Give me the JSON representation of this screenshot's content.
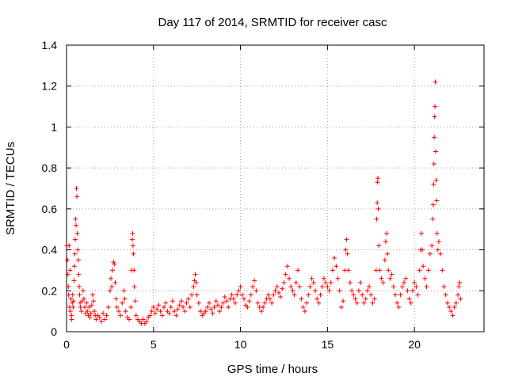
{
  "chart_data": {
    "type": "scatter",
    "title": "Day 117 of 2014, SRMTID for receiver casc",
    "xlabel": "GPS time / hours",
    "ylabel": "SRMTID / TECUs",
    "xlim": [
      0,
      24
    ],
    "ylim": [
      0,
      1.4
    ],
    "xticks": [
      0,
      5,
      10,
      15,
      20
    ],
    "xtick_labels": [
      "0",
      "5",
      "10",
      "15",
      "20"
    ],
    "yticks": [
      0,
      0.2,
      0.4,
      0.6,
      0.8,
      1.0,
      1.2,
      1.4
    ],
    "ytick_labels": [
      "0",
      "0.2",
      "0.4",
      "0.6",
      "0.8",
      "1",
      "1.2",
      "1.4"
    ],
    "grid": true,
    "marker": "plus",
    "color": "#ff0000",
    "series": [
      {
        "name": "SRMTID",
        "points": [
          [
            0.02,
            0.42
          ],
          [
            0.05,
            0.35
          ],
          [
            0.08,
            0.28
          ],
          [
            0.1,
            0.22
          ],
          [
            0.12,
            0.18
          ],
          [
            0.15,
            0.42
          ],
          [
            0.18,
            0.12
          ],
          [
            0.2,
            0.3
          ],
          [
            0.22,
            0.1
          ],
          [
            0.25,
            0.16
          ],
          [
            0.28,
            0.08
          ],
          [
            0.3,
            0.06
          ],
          [
            0.33,
            0.14
          ],
          [
            0.35,
            0.18
          ],
          [
            0.38,
            0.12
          ],
          [
            0.4,
            0.15
          ],
          [
            0.43,
            0.25
          ],
          [
            0.45,
            0.32
          ],
          [
            0.48,
            0.38
          ],
          [
            0.5,
            0.45
          ],
          [
            0.52,
            0.55
          ],
          [
            0.55,
            0.52
          ],
          [
            0.57,
            0.7
          ],
          [
            0.6,
            0.66
          ],
          [
            0.62,
            0.48
          ],
          [
            0.65,
            0.4
          ],
          [
            0.68,
            0.35
          ],
          [
            0.7,
            0.28
          ],
          [
            0.73,
            0.22
          ],
          [
            0.75,
            0.18
          ],
          [
            0.78,
            0.14
          ],
          [
            0.8,
            0.12
          ],
          [
            0.85,
            0.1
          ],
          [
            0.9,
            0.15
          ],
          [
            0.95,
            0.2
          ],
          [
            1.0,
            0.16
          ],
          [
            1.05,
            0.12
          ],
          [
            1.1,
            0.09
          ],
          [
            1.15,
            0.14
          ],
          [
            1.2,
            0.1
          ],
          [
            1.25,
            0.08
          ],
          [
            1.3,
            0.12
          ],
          [
            1.35,
            0.07
          ],
          [
            1.4,
            0.09
          ],
          [
            1.45,
            0.13
          ],
          [
            1.5,
            0.18
          ],
          [
            1.55,
            0.15
          ],
          [
            1.6,
            0.1
          ],
          [
            1.65,
            0.08
          ],
          [
            1.7,
            0.06
          ],
          [
            1.8,
            0.08
          ],
          [
            1.9,
            0.07
          ],
          [
            2.0,
            0.05
          ],
          [
            2.1,
            0.09
          ],
          [
            2.2,
            0.06
          ],
          [
            2.3,
            0.08
          ],
          [
            2.4,
            0.12
          ],
          [
            2.5,
            0.2
          ],
          [
            2.55,
            0.26
          ],
          [
            2.6,
            0.22
          ],
          [
            2.65,
            0.3
          ],
          [
            2.7,
            0.34
          ],
          [
            2.75,
            0.33
          ],
          [
            2.8,
            0.24
          ],
          [
            2.85,
            0.16
          ],
          [
            2.9,
            0.12
          ],
          [
            3.0,
            0.1
          ],
          [
            3.1,
            0.08
          ],
          [
            3.2,
            0.14
          ],
          [
            3.3,
            0.2
          ],
          [
            3.35,
            0.16
          ],
          [
            3.4,
            0.1
          ],
          [
            3.5,
            0.07
          ],
          [
            3.6,
            0.06
          ],
          [
            3.7,
            0.12
          ],
          [
            3.75,
            0.3
          ],
          [
            3.78,
            0.45
          ],
          [
            3.8,
            0.48
          ],
          [
            3.82,
            0.42
          ],
          [
            3.85,
            0.38
          ],
          [
            3.88,
            0.3
          ],
          [
            3.9,
            0.22
          ],
          [
            3.95,
            0.15
          ],
          [
            4.0,
            0.08
          ],
          [
            4.1,
            0.06
          ],
          [
            4.2,
            0.05
          ],
          [
            4.3,
            0.04
          ],
          [
            4.4,
            0.06
          ],
          [
            4.5,
            0.04
          ],
          [
            4.6,
            0.05
          ],
          [
            4.7,
            0.07
          ],
          [
            4.8,
            0.08
          ],
          [
            4.9,
            0.1
          ],
          [
            5.0,
            0.12
          ],
          [
            5.1,
            0.09
          ],
          [
            5.2,
            0.11
          ],
          [
            5.3,
            0.13
          ],
          [
            5.4,
            0.1
          ],
          [
            5.5,
            0.08
          ],
          [
            5.6,
            0.12
          ],
          [
            5.7,
            0.14
          ],
          [
            5.8,
            0.1
          ],
          [
            5.9,
            0.09
          ],
          [
            6.0,
            0.12
          ],
          [
            6.1,
            0.15
          ],
          [
            6.2,
            0.1
          ],
          [
            6.3,
            0.08
          ],
          [
            6.4,
            0.11
          ],
          [
            6.5,
            0.13
          ],
          [
            6.6,
            0.15
          ],
          [
            6.7,
            0.12
          ],
          [
            6.8,
            0.1
          ],
          [
            6.9,
            0.14
          ],
          [
            7.0,
            0.16
          ],
          [
            7.1,
            0.12
          ],
          [
            7.2,
            0.18
          ],
          [
            7.3,
            0.22
          ],
          [
            7.35,
            0.25
          ],
          [
            7.4,
            0.28
          ],
          [
            7.45,
            0.24
          ],
          [
            7.5,
            0.18
          ],
          [
            7.6,
            0.14
          ],
          [
            7.7,
            0.1
          ],
          [
            7.8,
            0.08
          ],
          [
            7.9,
            0.09
          ],
          [
            8.0,
            0.1
          ],
          [
            8.1,
            0.12
          ],
          [
            8.2,
            0.14
          ],
          [
            8.3,
            0.11
          ],
          [
            8.4,
            0.09
          ],
          [
            8.5,
            0.12
          ],
          [
            8.6,
            0.15
          ],
          [
            8.7,
            0.13
          ],
          [
            8.8,
            0.1
          ],
          [
            8.9,
            0.12
          ],
          [
            9.0,
            0.14
          ],
          [
            9.1,
            0.17
          ],
          [
            9.2,
            0.15
          ],
          [
            9.3,
            0.12
          ],
          [
            9.4,
            0.16
          ],
          [
            9.5,
            0.18
          ],
          [
            9.6,
            0.16
          ],
          [
            9.7,
            0.14
          ],
          [
            9.8,
            0.18
          ],
          [
            9.9,
            0.2
          ],
          [
            10.0,
            0.22
          ],
          [
            10.1,
            0.18
          ],
          [
            10.2,
            0.16
          ],
          [
            10.3,
            0.13
          ],
          [
            10.4,
            0.12
          ],
          [
            10.5,
            0.15
          ],
          [
            10.6,
            0.18
          ],
          [
            10.7,
            0.22
          ],
          [
            10.8,
            0.25
          ],
          [
            10.9,
            0.2
          ],
          [
            11.0,
            0.14
          ],
          [
            11.1,
            0.12
          ],
          [
            11.2,
            0.1
          ],
          [
            11.3,
            0.12
          ],
          [
            11.4,
            0.14
          ],
          [
            11.5,
            0.16
          ],
          [
            11.6,
            0.18
          ],
          [
            11.7,
            0.16
          ],
          [
            11.8,
            0.14
          ],
          [
            11.9,
            0.18
          ],
          [
            12.0,
            0.2
          ],
          [
            12.1,
            0.22
          ],
          [
            12.2,
            0.19
          ],
          [
            12.3,
            0.17
          ],
          [
            12.4,
            0.21
          ],
          [
            12.5,
            0.24
          ],
          [
            12.6,
            0.28
          ],
          [
            12.7,
            0.32
          ],
          [
            12.8,
            0.26
          ],
          [
            12.9,
            0.22
          ],
          [
            13.0,
            0.2
          ],
          [
            13.1,
            0.18
          ],
          [
            13.2,
            0.24
          ],
          [
            13.3,
            0.3
          ],
          [
            13.4,
            0.22
          ],
          [
            13.5,
            0.16
          ],
          [
            13.6,
            0.12
          ],
          [
            13.7,
            0.1
          ],
          [
            13.8,
            0.14
          ],
          [
            13.9,
            0.18
          ],
          [
            14.0,
            0.22
          ],
          [
            14.1,
            0.26
          ],
          [
            14.2,
            0.24
          ],
          [
            14.3,
            0.2
          ],
          [
            14.4,
            0.16
          ],
          [
            14.5,
            0.14
          ],
          [
            14.6,
            0.18
          ],
          [
            14.7,
            0.22
          ],
          [
            14.8,
            0.26
          ],
          [
            14.9,
            0.24
          ],
          [
            15.0,
            0.22
          ],
          [
            15.1,
            0.2
          ],
          [
            15.2,
            0.24
          ],
          [
            15.3,
            0.3
          ],
          [
            15.4,
            0.36
          ],
          [
            15.5,
            0.32
          ],
          [
            15.6,
            0.26
          ],
          [
            15.7,
            0.2
          ],
          [
            15.8,
            0.12
          ],
          [
            15.9,
            0.15
          ],
          [
            16.0,
            0.3
          ],
          [
            16.05,
            0.4
          ],
          [
            16.1,
            0.45
          ],
          [
            16.15,
            0.38
          ],
          [
            16.2,
            0.3
          ],
          [
            16.3,
            0.24
          ],
          [
            16.4,
            0.2
          ],
          [
            16.5,
            0.18
          ],
          [
            16.6,
            0.16
          ],
          [
            16.7,
            0.14
          ],
          [
            16.8,
            0.2
          ],
          [
            16.9,
            0.24
          ],
          [
            17.0,
            0.18
          ],
          [
            17.1,
            0.14
          ],
          [
            17.2,
            0.16
          ],
          [
            17.3,
            0.2
          ],
          [
            17.4,
            0.22
          ],
          [
            17.5,
            0.18
          ],
          [
            17.6,
            0.14
          ],
          [
            17.7,
            0.16
          ],
          [
            17.8,
            0.3
          ],
          [
            17.83,
            0.55
          ],
          [
            17.86,
            0.63
          ],
          [
            17.88,
            0.73
          ],
          [
            17.9,
            0.75
          ],
          [
            17.92,
            0.6
          ],
          [
            17.95,
            0.42
          ],
          [
            18.0,
            0.3
          ],
          [
            18.1,
            0.26
          ],
          [
            18.2,
            0.24
          ],
          [
            18.3,
            0.35
          ],
          [
            18.35,
            0.44
          ],
          [
            18.4,
            0.48
          ],
          [
            18.45,
            0.38
          ],
          [
            18.5,
            0.3
          ],
          [
            18.6,
            0.26
          ],
          [
            18.7,
            0.28
          ],
          [
            18.8,
            0.22
          ],
          [
            18.9,
            0.18
          ],
          [
            19.0,
            0.14
          ],
          [
            19.1,
            0.12
          ],
          [
            19.2,
            0.18
          ],
          [
            19.3,
            0.22
          ],
          [
            19.4,
            0.24
          ],
          [
            19.5,
            0.26
          ],
          [
            19.6,
            0.2
          ],
          [
            19.7,
            0.16
          ],
          [
            19.8,
            0.14
          ],
          [
            19.9,
            0.2
          ],
          [
            20.0,
            0.24
          ],
          [
            20.1,
            0.22
          ],
          [
            20.2,
            0.18
          ],
          [
            20.3,
            0.3
          ],
          [
            20.35,
            0.4
          ],
          [
            20.4,
            0.48
          ],
          [
            20.45,
            0.4
          ],
          [
            20.5,
            0.32
          ],
          [
            20.6,
            0.26
          ],
          [
            20.7,
            0.22
          ],
          [
            20.8,
            0.3
          ],
          [
            20.9,
            0.38
          ],
          [
            21.0,
            0.42
          ],
          [
            21.05,
            0.55
          ],
          [
            21.08,
            0.62
          ],
          [
            21.1,
            0.72
          ],
          [
            21.12,
            0.82
          ],
          [
            21.14,
            0.95
          ],
          [
            21.16,
            1.05
          ],
          [
            21.18,
            1.1
          ],
          [
            21.2,
            1.22
          ],
          [
            21.22,
            0.88
          ],
          [
            21.25,
            0.74
          ],
          [
            21.28,
            0.64
          ],
          [
            21.3,
            0.48
          ],
          [
            21.35,
            0.4
          ],
          [
            21.4,
            0.44
          ],
          [
            21.5,
            0.38
          ],
          [
            21.6,
            0.3
          ],
          [
            21.7,
            0.22
          ],
          [
            21.8,
            0.18
          ],
          [
            21.9,
            0.14
          ],
          [
            22.0,
            0.12
          ],
          [
            22.1,
            0.1
          ],
          [
            22.2,
            0.08
          ],
          [
            22.3,
            0.12
          ],
          [
            22.4,
            0.14
          ],
          [
            22.5,
            0.18
          ],
          [
            22.55,
            0.22
          ],
          [
            22.6,
            0.24
          ],
          [
            22.65,
            0.16
          ]
        ]
      }
    ]
  }
}
